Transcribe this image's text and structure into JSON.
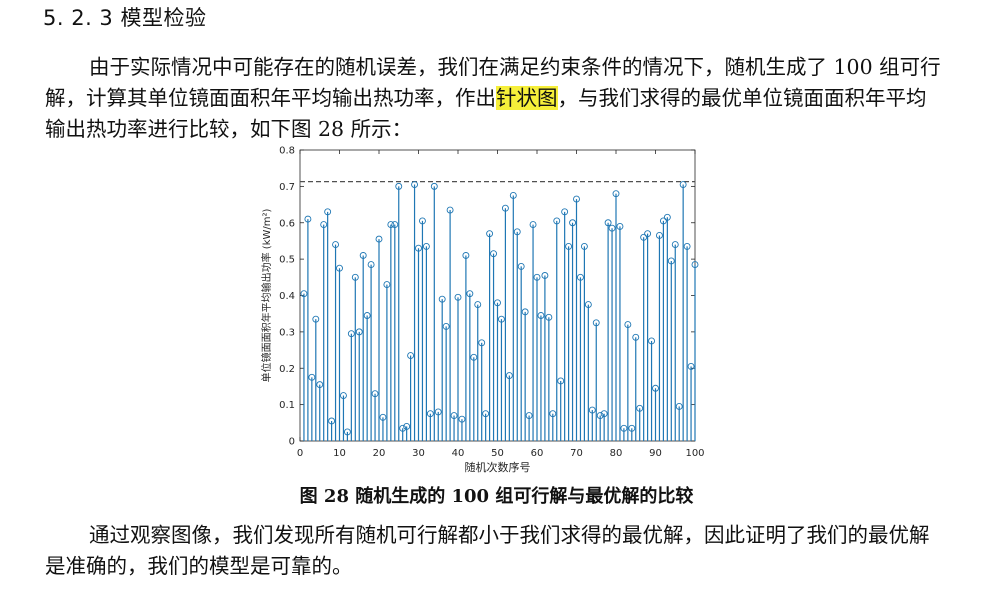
{
  "section": {
    "heading": "5. 2. 3 模型检验"
  },
  "paragraph1": {
    "text_before": "由于实际情况中可能存在的随机误差，我们在满足约束条件的情况下，随机生成了 100 组可行解，计算其单位镜面面积年平均输出热功率，作出",
    "highlight": "针状图",
    "text_after": "，与我们求得的最优单位镜面面积年平均输出热功率进行比较，如下图 28 所示："
  },
  "caption": "图 28 随机生成的 100 组可行解与最优解的比较",
  "paragraph2": "通过观察图像，我们发现所有随机可行解都小于我们求得的最优解，因此证明了我们的最优解是准确的，我们的模型是可靠的。",
  "colors": {
    "stem": "#1f77b4",
    "optimal_line": "#505050",
    "highlight": "#f6ef3a"
  },
  "chart_data": {
    "type": "stem",
    "xlabel": "随机次数序号",
    "ylabel": "单位镜面面积年平均输出功率 (kW/m²)",
    "xlim": [
      0,
      100
    ],
    "ylim": [
      0,
      0.8
    ],
    "xticks": [
      0,
      10,
      20,
      30,
      40,
      50,
      60,
      70,
      80,
      90,
      100
    ],
    "yticks": [
      0,
      0.1,
      0.2,
      0.3,
      0.4,
      0.5,
      0.6,
      0.7,
      0.8
    ],
    "reference_line": {
      "y": 0.713,
      "style": "dashed"
    },
    "x": [
      1,
      2,
      3,
      4,
      5,
      6,
      7,
      8,
      9,
      10,
      11,
      12,
      13,
      14,
      15,
      16,
      17,
      18,
      19,
      20,
      21,
      22,
      23,
      24,
      25,
      26,
      27,
      28,
      29,
      30,
      31,
      32,
      33,
      34,
      35,
      36,
      37,
      38,
      39,
      40,
      41,
      42,
      43,
      44,
      45,
      46,
      47,
      48,
      49,
      50,
      51,
      52,
      53,
      54,
      55,
      56,
      57,
      58,
      59,
      60,
      61,
      62,
      63,
      64,
      65,
      66,
      67,
      68,
      69,
      70,
      71,
      72,
      73,
      74,
      75,
      76,
      77,
      78,
      79,
      80,
      81,
      82,
      83,
      84,
      85,
      86,
      87,
      88,
      89,
      90,
      91,
      92,
      93,
      94,
      95,
      96,
      97,
      98,
      99,
      100
    ],
    "values": [
      0.405,
      0.61,
      0.175,
      0.335,
      0.155,
      0.595,
      0.63,
      0.055,
      0.54,
      0.475,
      0.125,
      0.025,
      0.295,
      0.45,
      0.3,
      0.51,
      0.345,
      0.485,
      0.13,
      0.555,
      0.065,
      0.43,
      0.595,
      0.595,
      0.7,
      0.035,
      0.04,
      0.235,
      0.705,
      0.53,
      0.605,
      0.535,
      0.075,
      0.7,
      0.08,
      0.39,
      0.315,
      0.635,
      0.07,
      0.395,
      0.06,
      0.51,
      0.405,
      0.23,
      0.375,
      0.27,
      0.075,
      0.57,
      0.515,
      0.38,
      0.335,
      0.64,
      0.18,
      0.675,
      0.575,
      0.48,
      0.355,
      0.07,
      0.595,
      0.45,
      0.345,
      0.455,
      0.34,
      0.075,
      0.605,
      0.165,
      0.63,
      0.535,
      0.6,
      0.665,
      0.45,
      0.535,
      0.375,
      0.085,
      0.325,
      0.07,
      0.075,
      0.6,
      0.585,
      0.68,
      0.59,
      0.035,
      0.32,
      0.035,
      0.285,
      0.09,
      0.56,
      0.57,
      0.275,
      0.145,
      0.565,
      0.605,
      0.615,
      0.495,
      0.54,
      0.095,
      0.705,
      0.535,
      0.205,
      0.485
    ]
  }
}
